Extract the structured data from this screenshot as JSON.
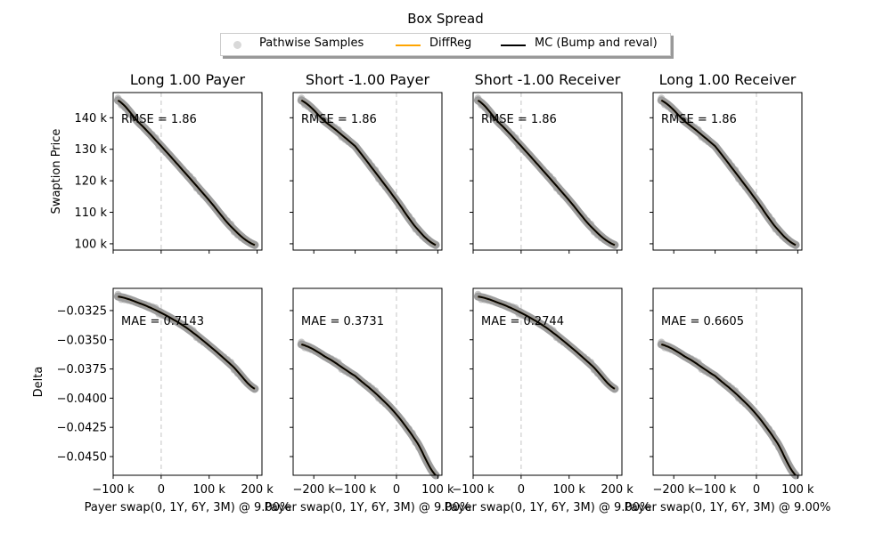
{
  "figure_title": "Box Spread",
  "legend": {
    "entries": [
      {
        "label": "Pathwise Samples",
        "kind": "marker",
        "color": "#c8c8c8"
      },
      {
        "label": "DiffReg",
        "kind": "line",
        "color": "#ffa500"
      },
      {
        "label": "MC (Bump and reval)",
        "kind": "line",
        "color": "#000000"
      }
    ]
  },
  "colors": {
    "samples": "#8c8c8c",
    "mc": "#000000",
    "diffreg": "#ffa500",
    "zero_line": "#d8d8d8"
  },
  "chart_data": [
    {
      "type": "line",
      "row": "top",
      "col": 0,
      "title": "Long 1.00 Payer",
      "ylabel": "Swaption Price",
      "xlabel": "",
      "xlim": [
        -100000,
        210000
      ],
      "ylim": [
        98000,
        148000
      ],
      "xticks": [],
      "yticks": [
        100000,
        110000,
        120000,
        130000,
        140000
      ],
      "ytick_labels": [
        "100 k",
        "110 k",
        "120 k",
        "130 k",
        "140 k"
      ],
      "annotation": "RMSE = 1.86",
      "x": [
        -90000,
        -50000,
        0,
        50000,
        100000,
        150000,
        195000
      ],
      "y": [
        145500,
        139000,
        131000,
        122500,
        113800,
        104800,
        99600
      ]
    },
    {
      "type": "line",
      "row": "top",
      "col": 1,
      "title": "Short -1.00 Payer",
      "ylabel": "",
      "xlabel": "",
      "xlim": [
        -250000,
        110000
      ],
      "ylim": [
        98000,
        148000
      ],
      "xticks": [],
      "yticks": [
        100000,
        110000,
        120000,
        130000,
        140000
      ],
      "ytick_labels": [],
      "annotation": "RMSE = 1.86",
      "x": [
        -230000,
        -175000,
        -100000,
        -50000,
        0,
        50000,
        95000
      ],
      "y": [
        145500,
        139000,
        131000,
        122500,
        113800,
        104800,
        99600
      ]
    },
    {
      "type": "line",
      "row": "top",
      "col": 2,
      "title": "Short -1.00 Receiver",
      "ylabel": "",
      "xlabel": "",
      "xlim": [
        -100000,
        210000
      ],
      "ylim": [
        98000,
        148000
      ],
      "xticks": [],
      "yticks": [
        100000,
        110000,
        120000,
        130000,
        140000
      ],
      "ytick_labels": [],
      "annotation": "RMSE = 1.86",
      "x": [
        -90000,
        -50000,
        0,
        50000,
        100000,
        150000,
        195000
      ],
      "y": [
        145500,
        139000,
        131000,
        122500,
        113800,
        104800,
        99600
      ]
    },
    {
      "type": "line",
      "row": "top",
      "col": 3,
      "title": "Long 1.00 Receiver",
      "ylabel": "",
      "xlabel": "",
      "xlim": [
        -250000,
        110000
      ],
      "ylim": [
        98000,
        148000
      ],
      "xticks": [],
      "yticks": [
        100000,
        110000,
        120000,
        130000,
        140000
      ],
      "ytick_labels": [],
      "annotation": "RMSE = 1.86",
      "x": [
        -230000,
        -175000,
        -100000,
        -50000,
        0,
        50000,
        95000
      ],
      "y": [
        145500,
        139000,
        131000,
        122500,
        113800,
        104800,
        99600
      ]
    },
    {
      "type": "line",
      "row": "bottom",
      "col": 0,
      "title": "",
      "ylabel": "Delta",
      "xlabel": "Payer swap(0, 1Y, 6Y, 3M) @ 9.00%",
      "xlim": [
        -100000,
        210000
      ],
      "ylim": [
        -0.0466,
        -0.0306
      ],
      "xticks": [
        -100000,
        0,
        100000,
        200000
      ],
      "xtick_labels": [
        "−100 k",
        "0",
        "100 k",
        "200 k"
      ],
      "yticks": [
        -0.0325,
        -0.035,
        -0.0375,
        -0.04,
        -0.0425,
        -0.045
      ],
      "ytick_labels": [
        "−0.0325",
        "−0.0350",
        "−0.0375",
        "−0.0400",
        "−0.0425",
        "−0.0450"
      ],
      "annotation": "MAE = 0.7143",
      "x": [
        -90000,
        -50000,
        0,
        50000,
        100000,
        150000,
        195000
      ],
      "y": [
        -0.0313,
        -0.0318,
        -0.0327,
        -0.0339,
        -0.0355,
        -0.0373,
        -0.0392
      ]
    },
    {
      "type": "line",
      "row": "bottom",
      "col": 1,
      "title": "",
      "ylabel": "",
      "xlabel": "Payer swap(0, 1Y, 6Y, 3M) @ 9.00%",
      "xlim": [
        -250000,
        110000
      ],
      "ylim": [
        -0.0466,
        -0.0306
      ],
      "xticks": [
        -200000,
        -100000,
        0,
        100000
      ],
      "xtick_labels": [
        "−200 k",
        "−100 k",
        "0",
        "100 k"
      ],
      "yticks": [
        -0.0325,
        -0.035,
        -0.0375,
        -0.04,
        -0.0425,
        -0.045
      ],
      "ytick_labels": [],
      "annotation": "MAE = 0.3731",
      "x": [
        -230000,
        -175000,
        -100000,
        -50000,
        0,
        50000,
        95000
      ],
      "y": [
        -0.0354,
        -0.0364,
        -0.0381,
        -0.0396,
        -0.0414,
        -0.0438,
        -0.0466
      ]
    },
    {
      "type": "line",
      "row": "bottom",
      "col": 2,
      "title": "",
      "ylabel": "",
      "xlabel": "Payer swap(0, 1Y, 6Y, 3M) @ 9.00%",
      "xlim": [
        -100000,
        210000
      ],
      "ylim": [
        -0.0466,
        -0.0306
      ],
      "xticks": [
        -100000,
        0,
        100000,
        200000
      ],
      "xtick_labels": [
        "−100 k",
        "0",
        "100 k",
        "200 k"
      ],
      "yticks": [
        -0.0325,
        -0.035,
        -0.0375,
        -0.04,
        -0.0425,
        -0.045
      ],
      "ytick_labels": [],
      "annotation": "MAE = 0.2744",
      "x": [
        -90000,
        -50000,
        0,
        50000,
        100000,
        150000,
        195000
      ],
      "y": [
        -0.0313,
        -0.0318,
        -0.0327,
        -0.0339,
        -0.0355,
        -0.0373,
        -0.0392
      ]
    },
    {
      "type": "line",
      "row": "bottom",
      "col": 3,
      "title": "",
      "ylabel": "",
      "xlabel": "Payer swap(0, 1Y, 6Y, 3M) @ 9.00%",
      "xlim": [
        -250000,
        110000
      ],
      "ylim": [
        -0.0466,
        -0.0306
      ],
      "xticks": [
        -200000,
        -100000,
        0,
        100000
      ],
      "xtick_labels": [
        "−200 k",
        "−100 k",
        "0",
        "100 k"
      ],
      "yticks": [
        -0.0325,
        -0.035,
        -0.0375,
        -0.04,
        -0.0425,
        -0.045
      ],
      "ytick_labels": [],
      "annotation": "MAE = 0.6605",
      "x": [
        -230000,
        -175000,
        -100000,
        -50000,
        0,
        50000,
        95000
      ],
      "y": [
        -0.0354,
        -0.0364,
        -0.0381,
        -0.0396,
        -0.0414,
        -0.0438,
        -0.0466
      ]
    }
  ]
}
